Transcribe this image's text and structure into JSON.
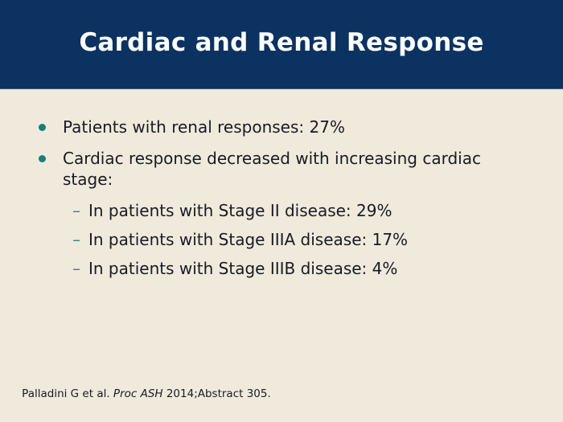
{
  "slide": {
    "title": "Cardiac and Renal Response",
    "bullets": [
      {
        "text": "Patients with renal responses: 27%"
      },
      {
        "text": "Cardiac response decreased with increasing cardiac stage:"
      }
    ],
    "sub_bullets": [
      {
        "marker": "–",
        "text": "In patients with Stage II disease: 29%"
      },
      {
        "marker": "–",
        "text": "In patients with Stage IIIA disease: 17%"
      },
      {
        "marker": "–",
        "text": "In patients with Stage IIIB disease: 4%"
      }
    ],
    "citation": {
      "prefix": "Palladini G et al. ",
      "italic": "Proc ASH",
      "suffix": " 2014;Abstract 305."
    },
    "colors": {
      "header_bg": "#0B3260",
      "background": "#EFEADC",
      "bullet_dot": "#1C7C78",
      "sub_dash": "#2F8E86",
      "title_text": "#FFFFFF",
      "body_text": "#1A1A22"
    }
  }
}
